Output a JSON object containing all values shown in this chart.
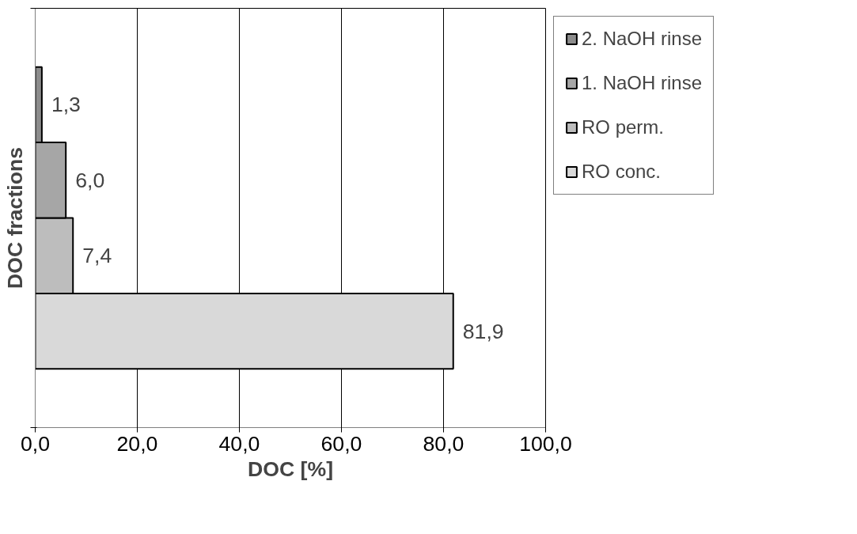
{
  "chart_data": {
    "type": "bar",
    "orientation": "horizontal",
    "xlabel": "DOC [%]",
    "ylabel": "DOC fractions",
    "categories": [
      null
    ],
    "series": [
      {
        "name": "RO conc.",
        "color": "#d9d9d9",
        "values": [
          81.9
        ],
        "value_labels": [
          "81,9"
        ]
      },
      {
        "name": "RO perm.",
        "color": "#bdbdbd",
        "values": [
          7.4
        ],
        "value_labels": [
          "7,4"
        ]
      },
      {
        "name": "1. NaOH rinse",
        "color": "#a6a6a6",
        "values": [
          6.0
        ],
        "value_labels": [
          "6,0"
        ]
      },
      {
        "name": "2. NaOH rinse",
        "color": "#8c8c8c",
        "values": [
          1.3
        ],
        "value_labels": [
          "1,3"
        ]
      }
    ],
    "xlim": [
      0,
      100
    ],
    "xticks": [
      {
        "value": 0,
        "label": "0,0"
      },
      {
        "value": 20,
        "label": "20,0"
      },
      {
        "value": 40,
        "label": "40,0"
      },
      {
        "value": 60,
        "label": "60,0"
      },
      {
        "value": 80,
        "label": "80,0"
      },
      {
        "value": 100,
        "label": "100,0"
      }
    ],
    "grid": "x",
    "legend": "right"
  }
}
